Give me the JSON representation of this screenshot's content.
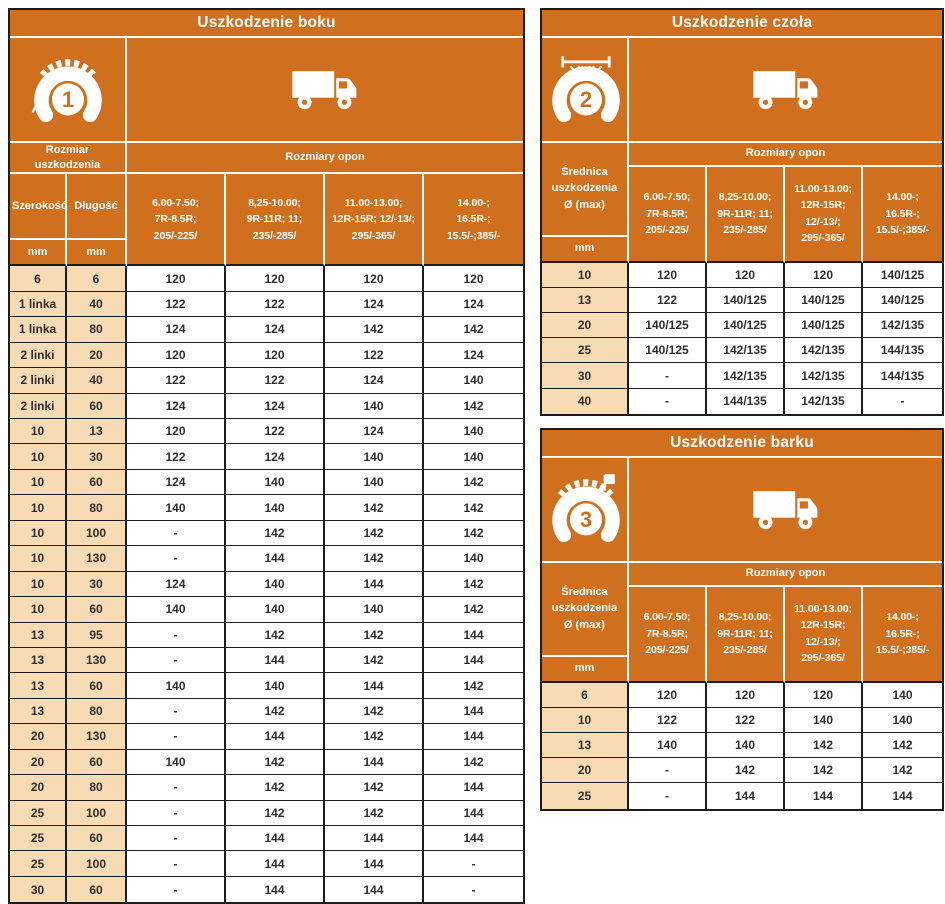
{
  "colors": {
    "orange": "#D0701E",
    "cream": "#F7DBB5",
    "border": "#1C1C1C",
    "header_text": "#FFFFFF",
    "data_text": "#2E2E2E"
  },
  "tables": {
    "boku": {
      "title": "Uszkodzenie boku",
      "icon_number": "1",
      "damage_size_label": "Rozmiar uszkodzenia",
      "tire_sizes_label": "Rozmiary opon",
      "col_width_label": "Szerokość",
      "col_length_label": "Długość",
      "unit": "mm",
      "size_columns": [
        "6.00-7.50;\n7R-8.5R;\n205/-225/",
        "8,25-10.00;\n9R-11R; 11;\n235/-285/",
        "11.00-13.00;\n12R-15R; 12/-13/;\n295/-365/",
        "14.00-;\n16.5R-;\n15.5/-;385/-"
      ],
      "rows": [
        [
          "6",
          "6",
          "120",
          "120",
          "120",
          "120"
        ],
        [
          "1 linka",
          "40",
          "122",
          "122",
          "124",
          "124"
        ],
        [
          "1 linka",
          "80",
          "124",
          "124",
          "142",
          "142"
        ],
        [
          "2 linki",
          "20",
          "120",
          "120",
          "122",
          "124"
        ],
        [
          "2 linki",
          "40",
          "122",
          "122",
          "124",
          "140"
        ],
        [
          "2 linki",
          "60",
          "124",
          "124",
          "140",
          "142"
        ],
        [
          "10",
          "13",
          "120",
          "122",
          "124",
          "140"
        ],
        [
          "10",
          "30",
          "122",
          "124",
          "140",
          "140"
        ],
        [
          "10",
          "60",
          "124",
          "140",
          "140",
          "142"
        ],
        [
          "10",
          "80",
          "140",
          "140",
          "142",
          "142"
        ],
        [
          "10",
          "100",
          "-",
          "142",
          "142",
          "142"
        ],
        [
          "10",
          "130",
          "-",
          "144",
          "142",
          "140"
        ],
        [
          "10",
          "30",
          "124",
          "140",
          "144",
          "142"
        ],
        [
          "10",
          "60",
          "140",
          "140",
          "140",
          "142"
        ],
        [
          "13",
          "95",
          "-",
          "142",
          "142",
          "144"
        ],
        [
          "13",
          "130",
          "-",
          "144",
          "142",
          "144"
        ],
        [
          "13",
          "60",
          "140",
          "140",
          "144",
          "142"
        ],
        [
          "13",
          "80",
          "-",
          "142",
          "142",
          "144"
        ],
        [
          "20",
          "130",
          "-",
          "144",
          "142",
          "144"
        ],
        [
          "20",
          "60",
          "140",
          "142",
          "144",
          "142"
        ],
        [
          "20",
          "80",
          "-",
          "142",
          "142",
          "144"
        ],
        [
          "25",
          "100",
          "-",
          "142",
          "142",
          "144"
        ],
        [
          "25",
          "60",
          "-",
          "144",
          "144",
          "144"
        ],
        [
          "25",
          "100",
          "-",
          "144",
          "144",
          "-"
        ],
        [
          "30",
          "60",
          "-",
          "144",
          "144",
          "-"
        ]
      ]
    },
    "czola": {
      "title": "Uszkodzenie czoła",
      "icon_number": "2",
      "damage_size_label": "Średnica\nuszkodzenia\nØ (max)",
      "tire_sizes_label": "Rozmiary opon",
      "unit": "mm",
      "size_columns": [
        "6.00-7.50;\n7R-8.5R;\n205/-225/",
        "8,25-10.00;\n9R-11R; 11;\n235/-285/",
        "11.00-13.00;\n12R-15R;\n12/-13/;\n295/-365/",
        "14.00-;\n16.5R-;\n15.5/-;385/-"
      ],
      "rows": [
        [
          "10",
          "120",
          "120",
          "120",
          "140/125"
        ],
        [
          "13",
          "122",
          "140/125",
          "140/125",
          "140/125"
        ],
        [
          "20",
          "140/125",
          "140/125",
          "140/125",
          "142/135"
        ],
        [
          "25",
          "140/125",
          "142/135",
          "142/135",
          "144/135"
        ],
        [
          "30",
          "-",
          "142/135",
          "142/135",
          "144/135"
        ],
        [
          "40",
          "-",
          "144/135",
          "142/135",
          "-"
        ]
      ]
    },
    "barku": {
      "title": "Uszkodzenie barku",
      "icon_number": "3",
      "damage_size_label": "Średnica\nuszkodzenia\nØ (max)",
      "tire_sizes_label": "Rozmiary opon",
      "unit": "mm",
      "size_columns": [
        "6.00-7.50;\n7R-8.5R;\n205/-225/",
        "8,25-10.00;\n9R-11R; 11;\n235/-285/",
        "11.00-13.00;\n12R-15R;\n12/-13/;\n295/-365/",
        "14.00-;\n16.5R-;\n15.5/-;385/-"
      ],
      "rows": [
        [
          "6",
          "120",
          "120",
          "120",
          "140"
        ],
        [
          "10",
          "122",
          "122",
          "140",
          "140"
        ],
        [
          "13",
          "140",
          "140",
          "142",
          "142"
        ],
        [
          "20",
          "-",
          "142",
          "142",
          "142"
        ],
        [
          "25",
          "-",
          "144",
          "144",
          "144"
        ]
      ]
    }
  }
}
